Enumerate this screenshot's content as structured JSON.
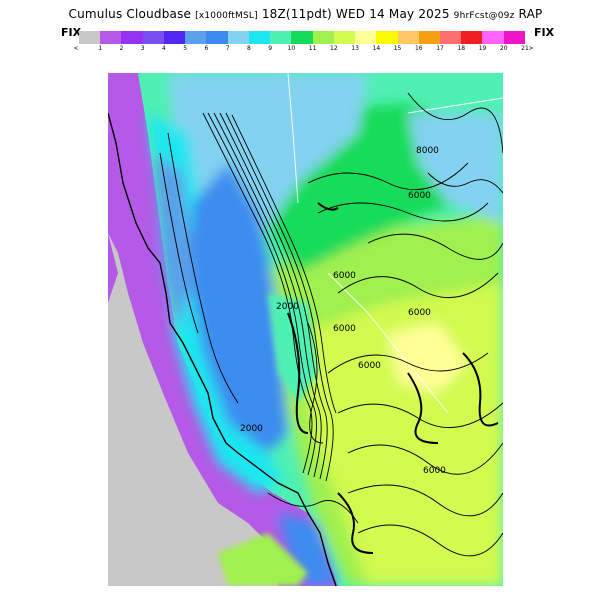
{
  "header": {
    "title_main": "Cumulus Cloudbase",
    "title_units": "[x1000ftMSL]",
    "title_valid": "18Z(11pdt) WED 14 May 2025",
    "title_forecast": "9hrFcst@09z",
    "title_model": "RAP"
  },
  "legend": {
    "fix_left": "FIX",
    "fix_right": "FIX",
    "colors": [
      "#c8c8c8",
      "#b45ae6",
      "#9632f0",
      "#7850f0",
      "#5028f0",
      "#5aa0ea",
      "#3c8cf0",
      "#82d2f0",
      "#1ee6f0",
      "#50f0b4",
      "#14dc5a",
      "#a0f050",
      "#d2fa50",
      "#ffff96",
      "#fafa00",
      "#ffc864",
      "#f5a014",
      "#ff6e6e",
      "#f01e1e",
      "#ff64ff",
      "#f014c8"
    ],
    "tick_labels": [
      "<",
      "1",
      "2",
      "3",
      "4",
      "5",
      "6",
      "7",
      "8",
      "9",
      "10",
      "11",
      "12",
      "13",
      "14",
      "15",
      "16",
      "17",
      "18",
      "19",
      "20",
      "21",
      ">"
    ]
  },
  "map": {
    "contour_labels": [
      "8000",
      "6000",
      "6000",
      "6000",
      "6000",
      "6000",
      "6000",
      "2000",
      "2000"
    ]
  }
}
